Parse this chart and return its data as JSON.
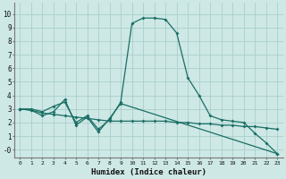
{
  "xlabel": "Humidex (Indice chaleur)",
  "bg_color": "#cde8e5",
  "grid_color": "#aacfcc",
  "line_color": "#1a6e65",
  "xlim": [
    -0.5,
    23.5
  ],
  "ylim": [
    -0.6,
    10.8
  ],
  "xticks": [
    0,
    1,
    2,
    3,
    4,
    5,
    6,
    7,
    8,
    9,
    10,
    11,
    12,
    13,
    14,
    15,
    16,
    17,
    18,
    19,
    20,
    21,
    22,
    23
  ],
  "yticks": [
    0,
    1,
    2,
    3,
    4,
    5,
    6,
    7,
    8,
    9,
    10
  ],
  "ytick_labels": [
    "-0",
    "1",
    "2",
    "3",
    "4",
    "5",
    "6",
    "7",
    "8",
    "9",
    "10"
  ],
  "curve1_x": [
    0,
    1,
    2,
    3,
    4,
    5,
    6,
    7,
    8,
    9,
    10,
    11,
    12,
    13,
    14,
    15,
    16,
    17,
    18,
    19,
    20,
    21,
    22,
    23
  ],
  "curve1_y": [
    3.0,
    3.0,
    2.8,
    3.2,
    3.5,
    2.0,
    2.5,
    1.5,
    2.2,
    3.5,
    9.3,
    9.7,
    9.7,
    9.6,
    8.6,
    5.3,
    4.0,
    2.5,
    2.2,
    2.1,
    2.0,
    1.2,
    0.5,
    -0.3
  ],
  "curve2_x": [
    0,
    1,
    2,
    3,
    4,
    5,
    6,
    7,
    8,
    9,
    10,
    11,
    12,
    13,
    14,
    15,
    16,
    17,
    18,
    19,
    20,
    21,
    22,
    23
  ],
  "curve2_y": [
    3.0,
    2.9,
    2.7,
    2.6,
    2.5,
    2.4,
    2.3,
    2.2,
    2.1,
    2.1,
    2.1,
    2.1,
    2.1,
    2.1,
    2.0,
    2.0,
    1.9,
    1.9,
    1.8,
    1.8,
    1.7,
    1.7,
    1.6,
    1.5
  ],
  "curve3_x": [
    0,
    1,
    2,
    3,
    4,
    5,
    6,
    7,
    8,
    9,
    23
  ],
  "curve3_y": [
    3.0,
    2.9,
    2.5,
    2.8,
    3.7,
    1.8,
    2.4,
    1.3,
    2.3,
    3.4,
    -0.3
  ]
}
